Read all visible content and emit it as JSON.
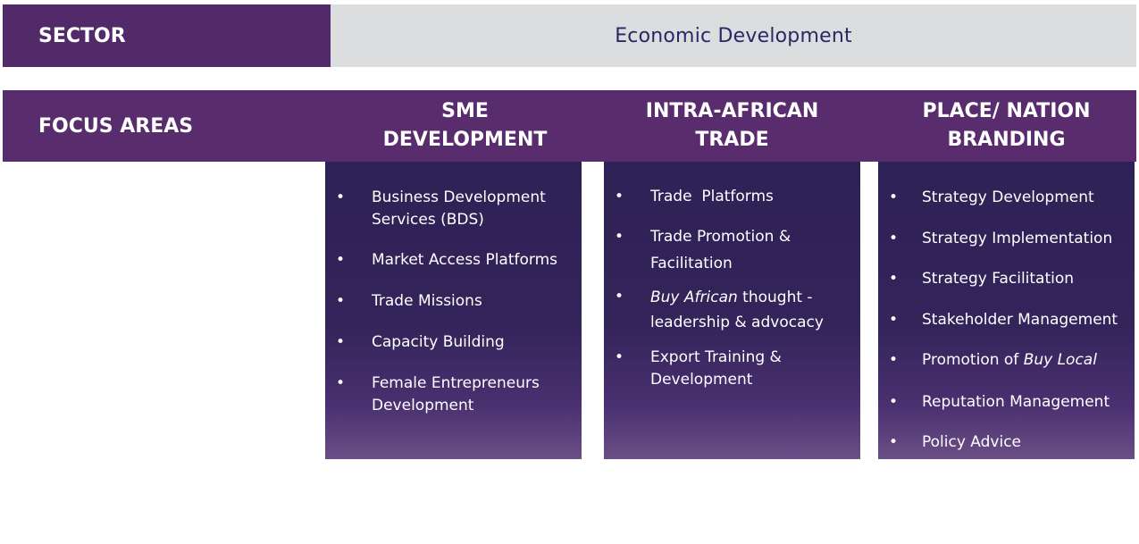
{
  "sector": {
    "label": "SECTOR",
    "value": "Economic Development"
  },
  "focus": {
    "label": "FOCUS AREAS"
  },
  "columns": [
    {
      "title": "SME\nDEVELOPMENT",
      "items": [
        "Business Development\nServices (BDS)",
        "Market Access Platforms",
        "Trade Missions",
        "Capacity Building",
        "Female Entrepreneurs\nDevelopment"
      ]
    },
    {
      "title": "INTRA-AFRICAN\nTRADE",
      "items": [
        "Trade  Platforms",
        "Trade Promotion &\nFacilitation",
        "Buy African thought -\nleadership & advocacy",
        "Export Training &\nDevelopment"
      ]
    },
    {
      "title": "PLACE/ NATION\nBRANDING",
      "items": [
        "Strategy Development",
        "Strategy Implementation",
        "Strategy Facilitation",
        "Stakeholder Management",
        "Promotion of Buy Local",
        "Reputation Management",
        "Policy Advice"
      ]
    }
  ],
  "bullet_char": "•",
  "colors": {
    "purple_header": "#592c6e",
    "sector_value_bg": "#dcdddf",
    "sector_value_text": "#2a2767",
    "column_box": "#2e2155"
  }
}
